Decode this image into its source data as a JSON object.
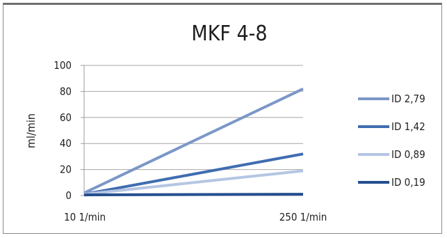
{
  "chart_data": {
    "type": "line",
    "title": "MKF 4-8",
    "ylabel": "ml/min",
    "xlabel": "",
    "categories": [
      "10  1/min",
      "250  1/min"
    ],
    "ylim": [
      0,
      100
    ],
    "yticks": [
      0,
      20,
      40,
      60,
      80,
      100
    ],
    "grid": true,
    "legend_position": "right",
    "series": [
      {
        "name": "ID 2,79",
        "values": [
          2,
          82
        ],
        "color": "#7b97c8"
      },
      {
        "name": "ID 1,42",
        "values": [
          1,
          32
        ],
        "color": "#3f6db0"
      },
      {
        "name": "ID 0,89",
        "values": [
          1,
          19
        ],
        "color": "#b5c6e3"
      },
      {
        "name": "ID 0,19",
        "values": [
          0.5,
          1
        ],
        "color": "#244f8e"
      }
    ]
  }
}
